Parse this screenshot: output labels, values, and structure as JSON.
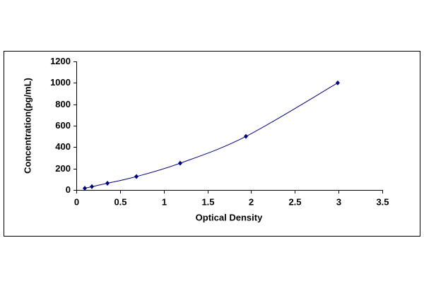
{
  "chart_data": {
    "type": "scatter",
    "x_label": "Optical Density",
    "y_label": "Concentration(pg/mL)",
    "x": [
      0.097,
      0.178,
      0.356,
      0.687,
      1.188,
      1.94,
      2.99
    ],
    "values": [
      15.6,
      31.25,
      62.5,
      125,
      250,
      500,
      1000
    ],
    "color": "#000080",
    "line": true,
    "xlim": [
      0,
      3.5
    ],
    "xticks": [
      0,
      0.5,
      1,
      1.5,
      2,
      2.5,
      3,
      3.5
    ],
    "ylim": [
      0,
      1200
    ],
    "yticks": [
      0,
      200,
      400,
      600,
      800,
      1000,
      1200
    ]
  }
}
